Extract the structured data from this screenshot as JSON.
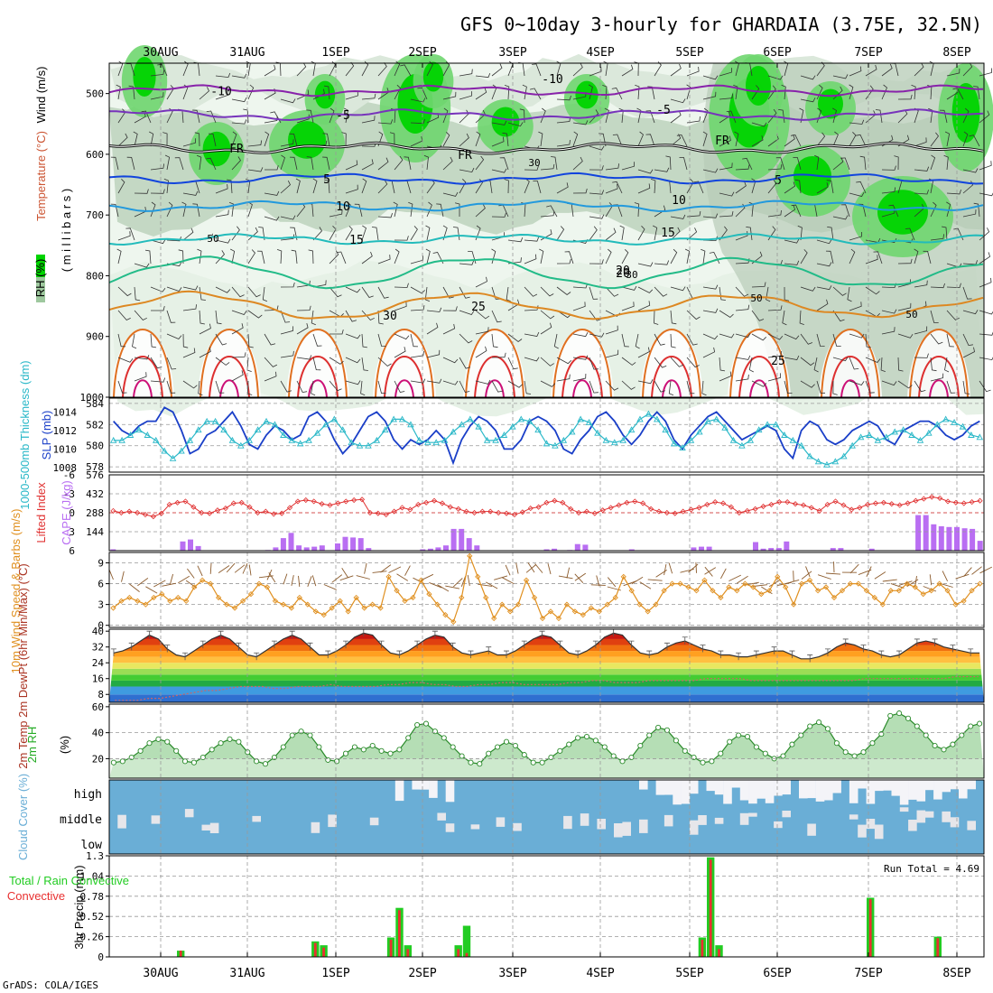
{
  "title": "GFS 0~10day 3-hourly for GHARDAIA (3.75E, 32.5N)",
  "footer": "GrADS: COLA/IGES",
  "dates": [
    "30AUG",
    "31AUG",
    "1SEP",
    "2SEP",
    "3SEP",
    "4SEP",
    "5SEP",
    "6SEP",
    "7SEP",
    "8SEP"
  ],
  "colors": {
    "rh_dark": "#00d400",
    "rh_mid": "#6fd66f",
    "rh_light": "#c8e6c8",
    "grid": "#999999",
    "slp": "#1a3fc8",
    "thick": "#2ab8c8",
    "lifted": "#e03030",
    "cape": "#b96ef2",
    "wind": "#e09020",
    "cloud": "#6aaed6",
    "precip_total": "#22cc22",
    "precip_conv": "#e83030"
  },
  "chart_data": [
    {
      "panel": "upper_air",
      "type": "heatmap",
      "ylabels": [
        "RH (%)",
        "Temperature (°C)",
        "Wind (m/s)",
        "( m i l l i b a r s )"
      ],
      "y_ticks": [
        500,
        600,
        700,
        800,
        900,
        1000
      ],
      "ylim": [
        1000,
        450
      ],
      "temperature_contours": [
        {
          "label": "-10",
          "pressure": 495,
          "color": "#8822aa"
        },
        {
          "label": "-5",
          "pressure": 535,
          "color": "#7733bb"
        },
        {
          "label": "FR",
          "pressure": 590,
          "color": "#111111"
        },
        {
          "label": "5",
          "pressure": 640,
          "color": "#1144dd"
        },
        {
          "label": "10",
          "pressure": 685,
          "color": "#2299dd"
        },
        {
          "label": "15",
          "pressure": 740,
          "color": "#22bbbb"
        },
        {
          "label": "20",
          "pressure": 795,
          "color": "#22bb88"
        },
        {
          "label": "25",
          "pressure": 850,
          "color": "#dd8822"
        }
      ],
      "rh_labels": [
        "50",
        "30"
      ]
    },
    {
      "panel": "thickness_slp",
      "type": "line",
      "ylabel_left": "1000-500mb Thickness (dm)",
      "ylabel_right": "SLP (mb)",
      "left_ticks": [
        578,
        580,
        582,
        584
      ],
      "right_ticks": [
        1008,
        1010,
        1012,
        1014
      ],
      "series": [
        {
          "name": "SLP",
          "values": [
            1013,
            1012,
            1011.5,
            1012.5,
            1013,
            1013,
            1014.5,
            1014,
            1012,
            1009.5,
            1010,
            1011.5,
            1012,
            1013,
            1014,
            1012.5,
            1010.5,
            1010,
            1011.5,
            1012.5,
            1012,
            1011,
            1011.5,
            1013.5,
            1014,
            1013,
            1011,
            1009.5,
            1010.5,
            1012,
            1013.5,
            1014,
            1013,
            1011,
            1010,
            1011,
            1010.5,
            1011,
            1012,
            1011,
            1008.5,
            1011,
            1012.5,
            1013.5,
            1013,
            1012,
            1010,
            1010,
            1011,
            1013,
            1013.5,
            1013,
            1012,
            1010,
            1009.5,
            1011,
            1012,
            1013.5,
            1014,
            1013,
            1011.5,
            1010.5,
            1011.5,
            1013,
            1014,
            1013,
            1011,
            1010,
            1011.5,
            1012.5,
            1013.5,
            1014,
            1013,
            1012,
            1011,
            1011.5,
            1012,
            1012.5,
            1012,
            1010,
            1009,
            1012,
            1013,
            1012.5,
            1011,
            1010.5,
            1011,
            1012,
            1012.5,
            1013,
            1012.5,
            1011,
            1010.5,
            1012,
            1012.5,
            1013,
            1013,
            1012.5,
            1011.5,
            1011,
            1011.5,
            1012.5,
            1013
          ]
        },
        {
          "name": "Thickness",
          "values": [
            580.5,
            580.5,
            581,
            581.5,
            581,
            580.5,
            579.5,
            578.8,
            579.5,
            580.5,
            581.5,
            582.3,
            582.3,
            581.5,
            580.5,
            580,
            580.5,
            581.5,
            582.3,
            582,
            581,
            580.5,
            580.2,
            580.5,
            581.2,
            582,
            582.5,
            581.5,
            580.3,
            580,
            580,
            580.5,
            581.5,
            582.5,
            582.5,
            582,
            580.5,
            580.3,
            580.3,
            580.5,
            581.3,
            582,
            582.5,
            581.8,
            580.5,
            580.5,
            581,
            581.8,
            582.5,
            582.3,
            581.5,
            580.2,
            580,
            580.5,
            581.3,
            582.5,
            582.2,
            581.2,
            580.5,
            580.3,
            580.5,
            581.5,
            582.5,
            583,
            582.5,
            581.5,
            580.2,
            579.8,
            580.5,
            581.3,
            582.3,
            582.5,
            581.7,
            580.5,
            580,
            580.5,
            581.5,
            582,
            582,
            581,
            580.5,
            580,
            579,
            578.5,
            578.2,
            578.5,
            579,
            580,
            580.8,
            581,
            580.5,
            580.8,
            581.3,
            581.5,
            581,
            580.5,
            581.2,
            582,
            582.5,
            582.2,
            581.8,
            581,
            580.8
          ]
        }
      ]
    },
    {
      "panel": "lifted_cape",
      "type": "bar",
      "ylabel_left": "Lifted Index",
      "ylabel_right": "CAPE (J/kg)",
      "left_ticks": [
        "6",
        "3",
        "0",
        "-3",
        "-6"
      ],
      "right_ticks": [
        144,
        288,
        432,
        576
      ],
      "series": [
        {
          "name": "CAPE",
          "values": [
            10,
            0,
            0,
            0,
            0,
            0,
            0,
            0,
            0,
            70,
            85,
            35,
            0,
            0,
            0,
            0,
            0,
            0,
            0,
            0,
            5,
            25,
            95,
            135,
            40,
            25,
            30,
            40,
            0,
            55,
            105,
            100,
            95,
            20,
            0,
            0,
            0,
            0,
            0,
            0,
            10,
            15,
            25,
            40,
            165,
            165,
            95,
            40,
            0,
            0,
            0,
            0,
            0,
            0,
            0,
            0,
            10,
            15,
            0,
            5,
            50,
            45,
            0,
            0,
            0,
            0,
            0,
            10,
            0,
            0,
            0,
            0,
            0,
            0,
            0,
            25,
            30,
            30,
            0,
            0,
            0,
            0,
            0,
            65,
            15,
            20,
            20,
            70,
            0,
            0,
            0,
            0,
            0,
            20,
            20,
            0,
            0,
            0,
            15,
            0,
            0,
            0,
            0,
            0,
            270,
            270,
            200,
            185,
            180,
            180,
            170,
            165,
            75
          ]
        },
        {
          "name": "Lifted Index",
          "values": [
            -0.3,
            0,
            -0.2,
            0,
            0.3,
            0.6,
            0.1,
            -1.3,
            -1.6,
            -1.8,
            -0.9,
            0,
            0.1,
            -0.4,
            -0.7,
            -1.5,
            -1.6,
            -0.9,
            0,
            -0.2,
            0.2,
            0.1,
            -0.8,
            -1.8,
            -2,
            -1.8,
            -1.4,
            -1.2,
            -1.5,
            -1.8,
            -2,
            -2.1,
            0,
            0.1,
            0.3,
            -0.2,
            -0.8,
            -0.5,
            -1.3,
            -1.6,
            -1.9,
            -1.5,
            -0.9,
            -0.6,
            -0.2,
            0,
            -0.2,
            -0.2,
            0,
            0.1,
            0.3,
            -0.1,
            -0.7,
            -0.9,
            -1.6,
            -1.9,
            -1.6,
            -0.6,
            0,
            -0.2,
            0.1,
            -0.4,
            -0.8,
            -1.2,
            -1.6,
            -1.8,
            -1.5,
            -0.6,
            -0.2,
            0,
            0.1,
            -0.2,
            -0.5,
            -0.8,
            -1.3,
            -1.7,
            -1.5,
            -0.9,
            0,
            -0.3,
            -0.6,
            -1,
            -1.3,
            -1.7,
            -1.7,
            -1.4,
            -1.2,
            -0.8,
            -0.3,
            -1.3,
            -1.8,
            -1.2,
            -0.5,
            -0.8,
            -1.3,
            -1.5,
            -1.6,
            -1.4,
            -1.2,
            -1.5,
            -1.9,
            -2.2,
            -2.5,
            -2.3,
            -1.8,
            -1.6,
            -1.5,
            -1.7,
            -1.9
          ]
        }
      ]
    },
    {
      "panel": "wind10m",
      "type": "line",
      "ylabel": "10m Wind Speed & Barbs (m/s)",
      "y_ticks": [
        0,
        3,
        6,
        9
      ],
      "series": [
        {
          "name": "Speed",
          "values": [
            2.5,
            3.5,
            4,
            3.5,
            3,
            4,
            4.5,
            3.5,
            4,
            3.5,
            5.5,
            6.5,
            6,
            4,
            3,
            2.5,
            3.5,
            4.5,
            6,
            5.5,
            3.5,
            3,
            2.5,
            4,
            3,
            2,
            1.5,
            2.5,
            3.5,
            2,
            4,
            2.5,
            3,
            2.5,
            7,
            5,
            3.5,
            4,
            6.5,
            4.5,
            3,
            1.5,
            0.5,
            4,
            10,
            7,
            4,
            1,
            3,
            2,
            3,
            6.5,
            4,
            1,
            2,
            1,
            3,
            2,
            1.5,
            2.5,
            2,
            3,
            4,
            7,
            5,
            3,
            2,
            3,
            5,
            6,
            6,
            5.5,
            5,
            6.5,
            5,
            4,
            5.5,
            5,
            6,
            5.5,
            4.5,
            5,
            7,
            5.5,
            3,
            6,
            6.5,
            5,
            5.5,
            4,
            5,
            6,
            6,
            5,
            4,
            3,
            5,
            5,
            6,
            5.5,
            4.5,
            5,
            6,
            5,
            3,
            3.5,
            5,
            6
          ]
        }
      ]
    },
    {
      "panel": "temp2m",
      "type": "area",
      "ylabel": "2m Temp 2m DewPt (6hr Min/Max) (°C)",
      "y_ticks": [
        8,
        16,
        24,
        32,
        40
      ],
      "series": [
        {
          "name": "Temp",
          "values": [
            29,
            30,
            32,
            35,
            38,
            36,
            31,
            28,
            27,
            30,
            33,
            36,
            38,
            36,
            32,
            28,
            27,
            30,
            33,
            36,
            38,
            36,
            32,
            28,
            28,
            30,
            33,
            37,
            39,
            38,
            33,
            29,
            28,
            30,
            33,
            36,
            38,
            37,
            32,
            29,
            28,
            29,
            30,
            28,
            28,
            30,
            33,
            36,
            38,
            37,
            33,
            29,
            28,
            30,
            33,
            37,
            39,
            38,
            33,
            29,
            28,
            29,
            32,
            34,
            35,
            33,
            31,
            30,
            28,
            28,
            27,
            27,
            28,
            29,
            30,
            30,
            28,
            26,
            26,
            27,
            29,
            32,
            34,
            33,
            31,
            30,
            28,
            27,
            28,
            31,
            34,
            35,
            34,
            32,
            31,
            30,
            29,
            29
          ]
        },
        {
          "name": "DewPt",
          "values": [
            5,
            5,
            5,
            6,
            6,
            7,
            8,
            9,
            10,
            10,
            11,
            12,
            12,
            12,
            11,
            11,
            12,
            12,
            12,
            13,
            12,
            12,
            12,
            12,
            13,
            13,
            14,
            14,
            13,
            13,
            12,
            12,
            13,
            13,
            14,
            14,
            13,
            13,
            13,
            13,
            14,
            14,
            15,
            15,
            14,
            14,
            14,
            15,
            15,
            15,
            15,
            15,
            16,
            16,
            16,
            16,
            15,
            15,
            15,
            15,
            15,
            15,
            15,
            15,
            15,
            15,
            16,
            16,
            16,
            16,
            16,
            16,
            16,
            16,
            17,
            17,
            17
          ]
        }
      ]
    },
    {
      "panel": "rh2m",
      "type": "area",
      "ylabel": "2m RH (%)",
      "y_ticks": [
        20,
        40,
        60
      ],
      "series": [
        {
          "name": "RH",
          "values": [
            17,
            18,
            21,
            26,
            32,
            35,
            33,
            26,
            18,
            17,
            21,
            27,
            32,
            35,
            33,
            25,
            18,
            16,
            21,
            29,
            38,
            41,
            38,
            29,
            19,
            18,
            24,
            29,
            27,
            30,
            26,
            24,
            27,
            36,
            46,
            47,
            41,
            36,
            29,
            22,
            17,
            16,
            24,
            29,
            33,
            30,
            23,
            17,
            17,
            21,
            26,
            31,
            36,
            37,
            34,
            29,
            22,
            18,
            21,
            30,
            38,
            44,
            42,
            34,
            26,
            21,
            17,
            18,
            24,
            33,
            38,
            37,
            29,
            24,
            20,
            22,
            31,
            38,
            45,
            48,
            43,
            32,
            25,
            22,
            25,
            32,
            39,
            53,
            55,
            51,
            45,
            38,
            30,
            27,
            31,
            38,
            45,
            47
          ]
        }
      ]
    },
    {
      "panel": "cloud",
      "type": "heatmap",
      "ylabel": "Cloud Cover (%)",
      "levels": [
        "high",
        "middle",
        "low"
      ]
    },
    {
      "panel": "precip",
      "type": "bar",
      "ylabel": "3hr Precip (mm)",
      "ylabel_left": "Total / Rain Convective",
      "y_ticks": [
        "0",
        "0.26",
        "0.52",
        "0.78",
        "1.04",
        "1.3"
      ],
      "annotation": "Run Total =  4.69",
      "series": [
        {
          "name": "Total",
          "values": [
            [
              8,
              0.08
            ],
            [
              24,
              0.2
            ],
            [
              25,
              0.15
            ],
            [
              33,
              0.25
            ],
            [
              34,
              0.63
            ],
            [
              35,
              0.15
            ],
            [
              41,
              0.15
            ],
            [
              42,
              0.4
            ],
            [
              70,
              0.25
            ],
            [
              71,
              1.28
            ],
            [
              72,
              0.15
            ],
            [
              90,
              0.76
            ],
            [
              98,
              0.26
            ]
          ]
        },
        {
          "name": "Convective",
          "values": [
            [
              8,
              0.08
            ],
            [
              24,
              0.18
            ],
            [
              25,
              0.12
            ],
            [
              33,
              0.22
            ],
            [
              34,
              0.6
            ],
            [
              35,
              0.1
            ],
            [
              41,
              0.1
            ],
            [
              42,
              0.05
            ],
            [
              70,
              0.22
            ],
            [
              71,
              1.25
            ],
            [
              72,
              0.1
            ],
            [
              90,
              0.74
            ],
            [
              98,
              0.24
            ]
          ]
        }
      ]
    }
  ]
}
